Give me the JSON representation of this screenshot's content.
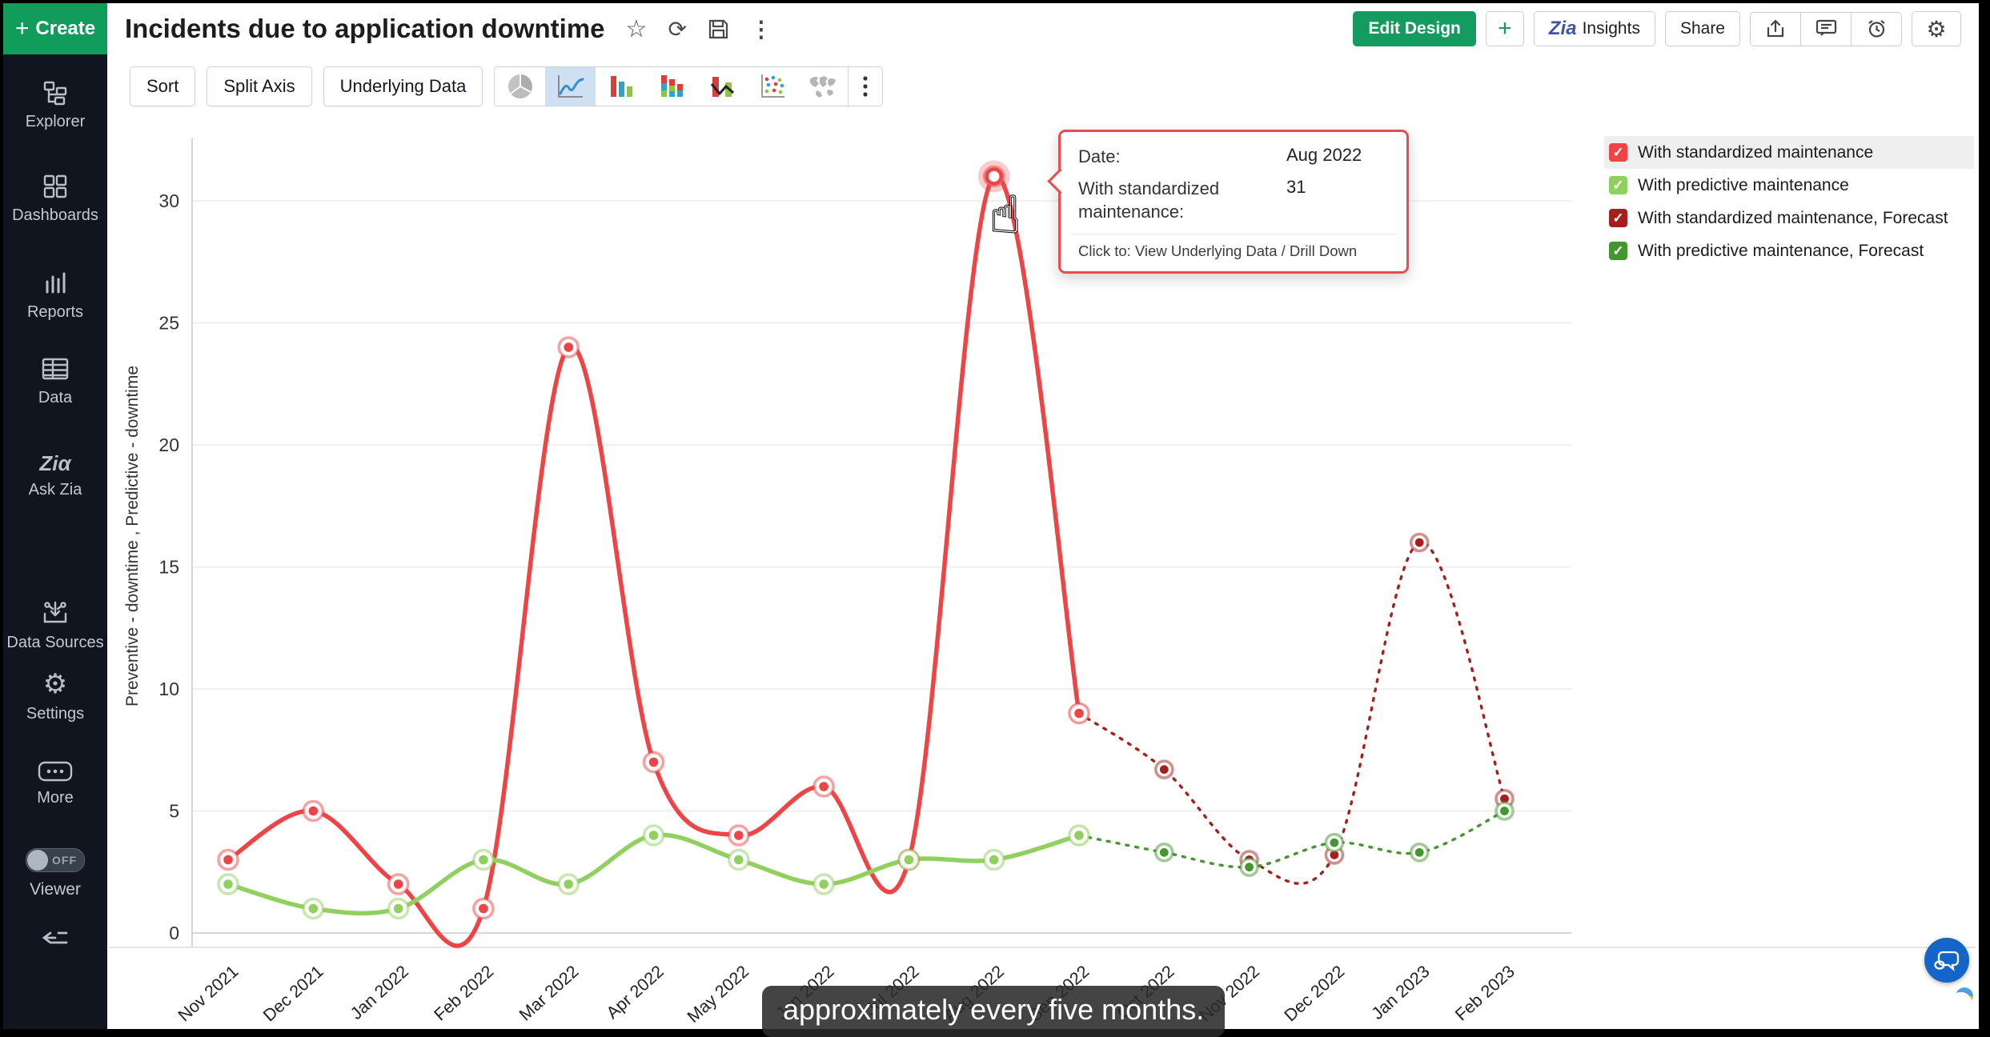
{
  "sidebar": {
    "create": {
      "label": "Create"
    },
    "items": [
      {
        "label": "Explorer"
      },
      {
        "label": "Dashboards"
      },
      {
        "label": "Reports"
      },
      {
        "label": "Data"
      },
      {
        "label": "Ask Zia"
      },
      {
        "label": "Data Sources"
      },
      {
        "label": "Settings"
      },
      {
        "label": "More"
      }
    ],
    "viewer": {
      "label": "Viewer",
      "toggle_state": "OFF"
    }
  },
  "header": {
    "title": "Incidents due to application downtime",
    "edit_design_label": "Edit Design",
    "add_label": "+",
    "insights_label": "Insights",
    "insights_logo": "Zia",
    "share_label": "Share"
  },
  "toolbar": {
    "sort_label": "Sort",
    "split_axis_label": "Split Axis",
    "underlying_data_label": "Underlying Data"
  },
  "tooltip": {
    "date_label": "Date:",
    "date_value": "Aug 2022",
    "series_label": "With standardized maintenance:",
    "series_value": "31",
    "footer": "Click to: View Underlying Data / Drill Down"
  },
  "caption": "approximately every five months.",
  "chart_data": {
    "type": "line",
    "title": "Incidents due to application downtime",
    "x": [
      "Nov 2021",
      "Dec 2021",
      "Jan 2022",
      "Feb 2022",
      "Mar 2022",
      "Apr 2022",
      "May 2022",
      "Jun 2022",
      "Jul 2022",
      "Aug 2022",
      "Sep 2022",
      "Oct 2022",
      "Nov 2022",
      "Dec 2022",
      "Jan 2023",
      "Feb 2023"
    ],
    "series": [
      {
        "name": "With standardized maintenance",
        "color": "#ee4446",
        "style": "solid",
        "values": [
          3,
          5,
          2,
          1,
          24,
          7,
          4,
          6,
          3,
          31,
          9,
          null,
          null,
          null,
          null,
          null
        ]
      },
      {
        "name": "With predictive maintenance",
        "color": "#8fd05e",
        "style": "solid",
        "values": [
          2,
          1,
          1,
          3,
          2,
          4,
          3,
          2,
          3,
          3,
          4,
          null,
          null,
          null,
          null,
          null
        ]
      },
      {
        "name": "With standardized maintenance, Forecast",
        "color": "#a6201b",
        "style": "dotted",
        "values": [
          null,
          null,
          null,
          null,
          null,
          null,
          null,
          null,
          null,
          null,
          9,
          6.7,
          3,
          3.2,
          16,
          5.5
        ]
      },
      {
        "name": "With predictive maintenance, Forecast",
        "color": "#44962e",
        "style": "dotted",
        "values": [
          null,
          null,
          null,
          null,
          null,
          null,
          null,
          null,
          null,
          null,
          4,
          3.3,
          2.7,
          3.7,
          3.3,
          5
        ]
      }
    ],
    "ylabel": "Preventive - downtime , Predictive - downtime",
    "xlabel": "",
    "ylim": [
      0,
      32
    ],
    "yticks": [
      0,
      5,
      10,
      15,
      20,
      25,
      30
    ],
    "grid": true,
    "legend_position": "top-right",
    "highlight": {
      "x": "Aug 2022",
      "x_index": 9,
      "series_index": 0,
      "value": 31
    }
  },
  "colors": {
    "accent_green": "#149c60",
    "sidebar_bg": "#10151f",
    "tooltip_border": "#ee4a4c",
    "fab_blue": "#1565c9"
  }
}
